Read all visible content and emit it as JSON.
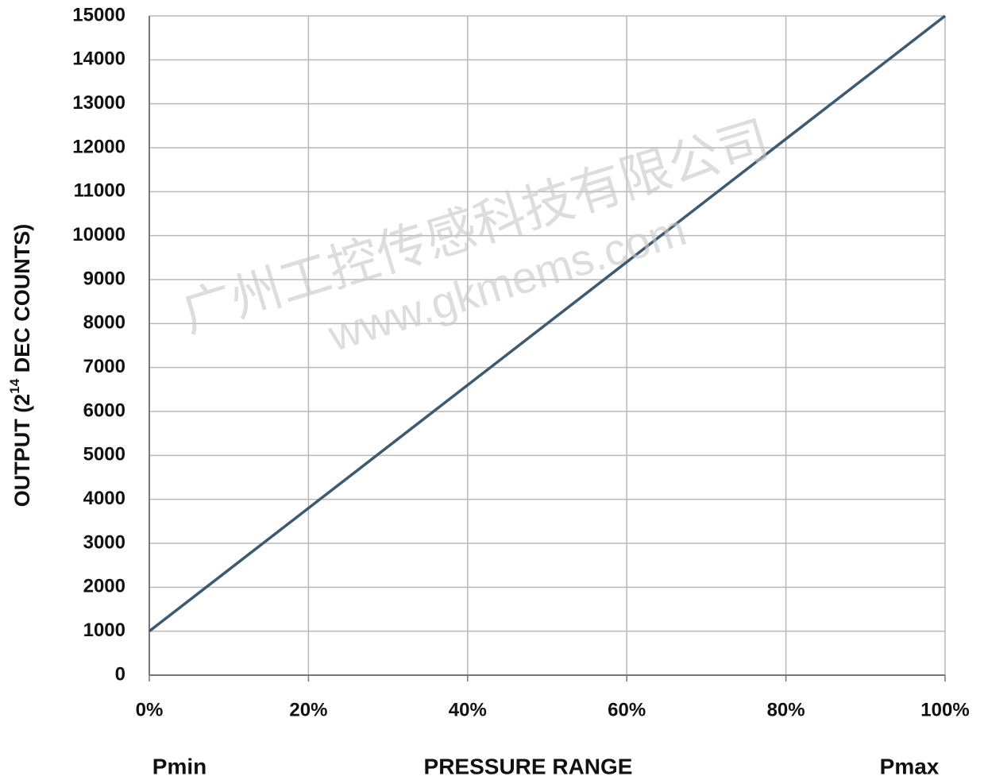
{
  "chart_data": {
    "type": "line",
    "y_label_parts": [
      "OUTPUT (2",
      "14",
      " DEC COUNTS)"
    ],
    "x_label": "PRESSURE RANGE",
    "annotations": [
      "Pmin",
      "Pmax"
    ],
    "watermark": [
      "广州工控传感科技有限公司",
      "www.gkmems.com"
    ],
    "x": [
      0,
      100
    ],
    "series": [
      {
        "name": "Output",
        "color": "#3e5a70",
        "values": [
          1000,
          15000
        ]
      }
    ],
    "xlim": [
      0,
      100
    ],
    "xticks": [
      {
        "value": 0,
        "label": "0%"
      },
      {
        "value": 20,
        "label": "20%"
      },
      {
        "value": 40,
        "label": "40%"
      },
      {
        "value": 60,
        "label": "60%"
      },
      {
        "value": 80,
        "label": "80%"
      },
      {
        "value": 100,
        "label": "100%"
      }
    ],
    "ylim": [
      0,
      15000
    ],
    "yticks": [
      0,
      1000,
      2000,
      3000,
      4000,
      5000,
      6000,
      7000,
      8000,
      9000,
      10000,
      11000,
      12000,
      13000,
      14000,
      15000
    ],
    "grid": true
  }
}
